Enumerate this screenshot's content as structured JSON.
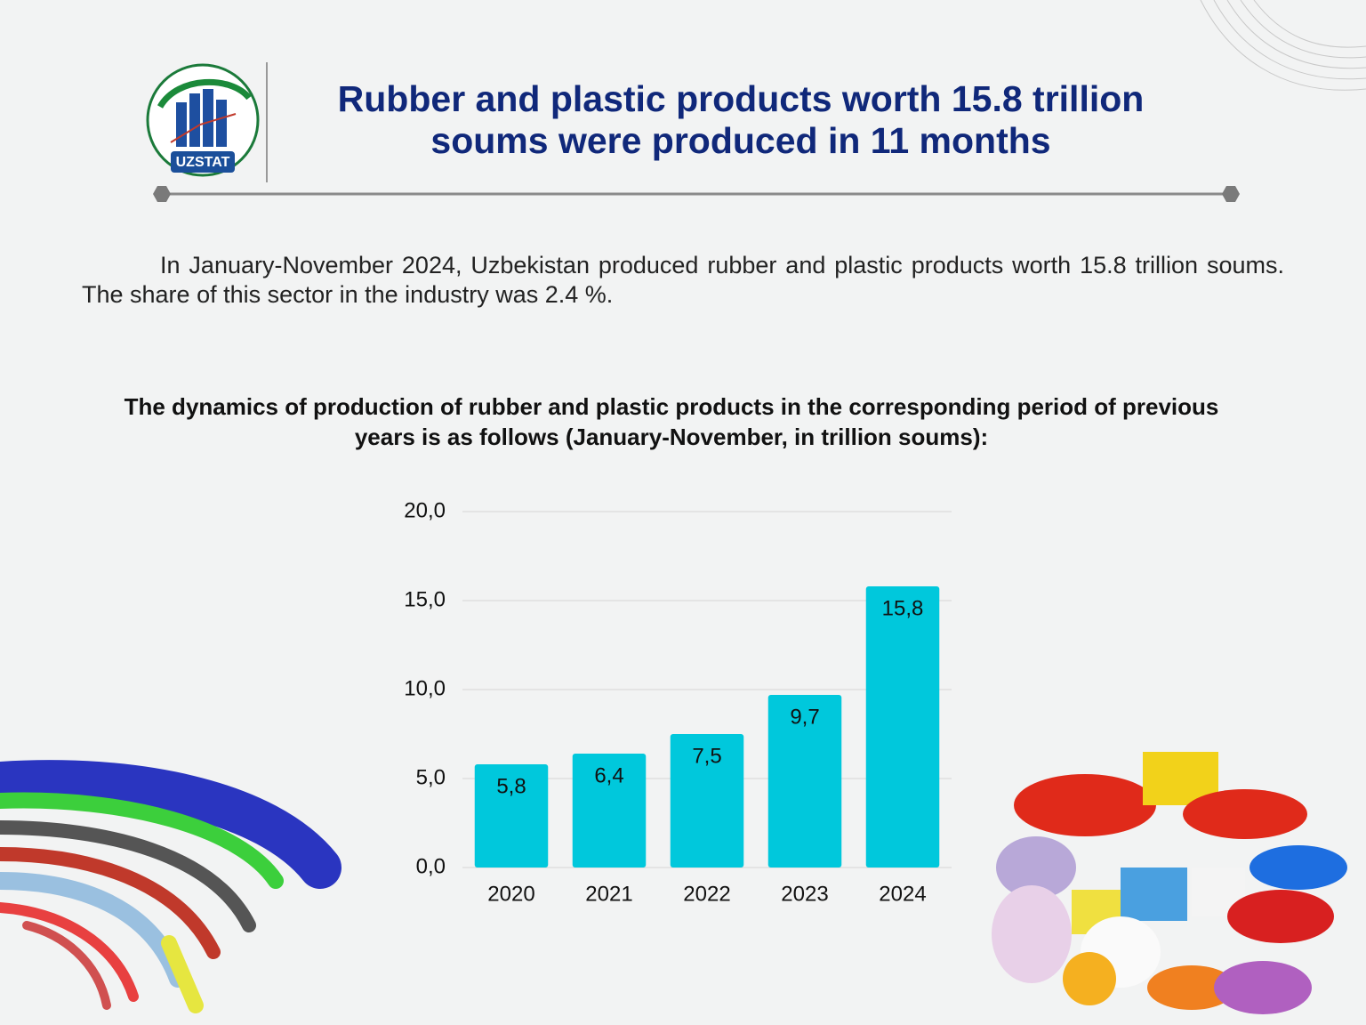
{
  "logo_text": "UZSTAT",
  "title": "Rubber and plastic products worth 15.8 trillion soums were produced in 11 months",
  "paragraph": "In January-November 2024, Uzbekistan produced rubber and plastic products worth 15.8 trillion soums. The share of this sector in the industry was 2.4 %.",
  "chart_data": {
    "type": "bar",
    "title": "The dynamics of production of rubber and plastic products in the corresponding period of previous years is as follows (January-November, in trillion soums):",
    "categories": [
      "2020",
      "2021",
      "2022",
      "2023",
      "2024"
    ],
    "values": [
      5.8,
      6.4,
      7.5,
      9.7,
      15.8
    ],
    "value_labels": [
      "5,8",
      "6,4",
      "7,5",
      "9,7",
      "15,8"
    ],
    "color": "#00c8dc",
    "ylim": [
      0,
      20
    ],
    "yticks": [
      {
        "value": 0,
        "label": "0,0"
      },
      {
        "value": 5,
        "label": "5,0"
      },
      {
        "value": 10,
        "label": "10,0"
      },
      {
        "value": 15,
        "label": "15,0"
      },
      {
        "value": 20,
        "label": "20,0"
      }
    ],
    "grid": true
  }
}
